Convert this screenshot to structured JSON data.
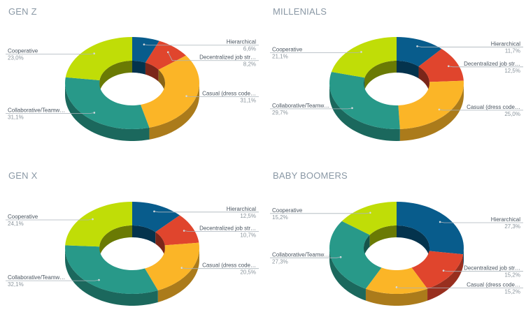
{
  "chart_data": [
    {
      "type": "pie",
      "style": "3d-donut",
      "title": "GEN Z",
      "labels": [
        "Hierarchical",
        "Decentralized job str…",
        "Casual (dress code…",
        "Collaborative/Teamw…",
        "Cooperative"
      ],
      "values": [
        6.6,
        8.2,
        31.1,
        31.1,
        23.0
      ],
      "value_labels": [
        "6,6%",
        "8,2%",
        "31,1%",
        "31,1%",
        "23,0%"
      ]
    },
    {
      "type": "pie",
      "style": "3d-donut",
      "title": "MILLENIALS",
      "labels": [
        "Hierarchical",
        "Decentralized job str…",
        "Casual (dress code…",
        "Collaborative/Teamw…",
        "Cooperative"
      ],
      "values": [
        11.7,
        12.5,
        25.0,
        29.7,
        21.1
      ],
      "value_labels": [
        "11,7%",
        "12,5%",
        "25,0%",
        "29,7%",
        "21,1%"
      ]
    },
    {
      "type": "pie",
      "style": "3d-donut",
      "title": "GEN X",
      "labels": [
        "Hierarchical",
        "Decentralized job str…",
        "Casual (dress code…",
        "Collaborative/Teamw…",
        "Cooperative"
      ],
      "values": [
        12.5,
        10.7,
        20.5,
        32.1,
        24.1
      ],
      "value_labels": [
        "12,5%",
        "10,7%",
        "20,5%",
        "32,1%",
        "24,1%"
      ]
    },
    {
      "type": "pie",
      "style": "3d-donut",
      "title": "BABY BOOMERS",
      "labels": [
        "Hierarchical",
        "Decentralized job str…",
        "Casual (dress code…",
        "Collaborative/Teamw…",
        "Cooperative"
      ],
      "values": [
        27.3,
        15.2,
        15.2,
        27.3,
        15.2
      ],
      "value_labels": [
        "27,3%",
        "15,2%",
        "15,2%",
        "27,3%",
        "15,2%"
      ]
    }
  ],
  "colors": [
    "#085c8c",
    "#e0452d",
    "#fbb527",
    "#289989",
    "#c0dd07"
  ],
  "label_color": "#4a5560",
  "value_color": "#8a949c",
  "title_color": "#8a98a5"
}
